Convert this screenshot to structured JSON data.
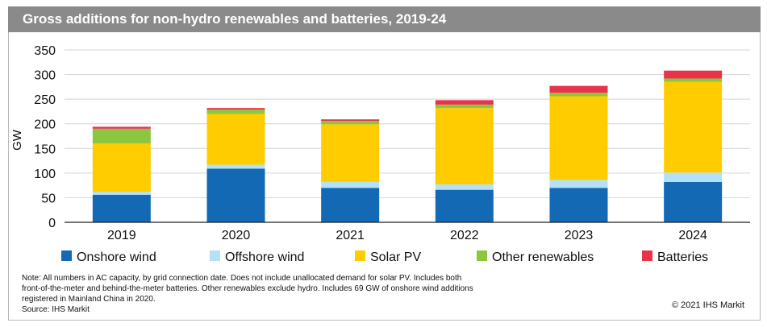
{
  "header": {
    "title": "Gross additions for non-hydro renewables and batteries, 2019-24"
  },
  "chart_data": {
    "type": "bar",
    "stacked": true,
    "categories": [
      "2019",
      "2020",
      "2021",
      "2022",
      "2023",
      "2024"
    ],
    "series": [
      {
        "name": "Onshore wind",
        "color": "#1469b4",
        "values": [
          56,
          109,
          70,
          66,
          70,
          82
        ]
      },
      {
        "name": "Offshore wind",
        "color": "#b3e1f7",
        "values": [
          6,
          8,
          12,
          11,
          16,
          19
        ]
      },
      {
        "name": "Solar PV",
        "color": "#ffcc00",
        "values": [
          98,
          103,
          117,
          155,
          170,
          184
        ]
      },
      {
        "name": "Other renewables",
        "color": "#8cc63f",
        "values": [
          30,
          9,
          7,
          7,
          7,
          7
        ]
      },
      {
        "name": "Batteries",
        "color": "#e8334a",
        "values": [
          4,
          3,
          3,
          9,
          14,
          16
        ]
      }
    ],
    "ylabel": "GW",
    "ylim": [
      0,
      350
    ],
    "yticks": [
      0,
      50,
      100,
      150,
      200,
      250,
      300,
      350
    ],
    "grid": true,
    "legend_position": "bottom"
  },
  "footer": {
    "note_lines": [
      "Note: All numbers in AC capacity, by grid connection date. Does not include unallocated demand for solar PV. Includes both",
      "front-of-the-meter and behind-the-meter batteries. Other renewables exclude hydro. Includes 69 GW of onshore wind additions",
      "registered in Mainland China in 2020.",
      "Source: IHS Markit"
    ],
    "copyright": "© 2021 IHS Markit"
  }
}
